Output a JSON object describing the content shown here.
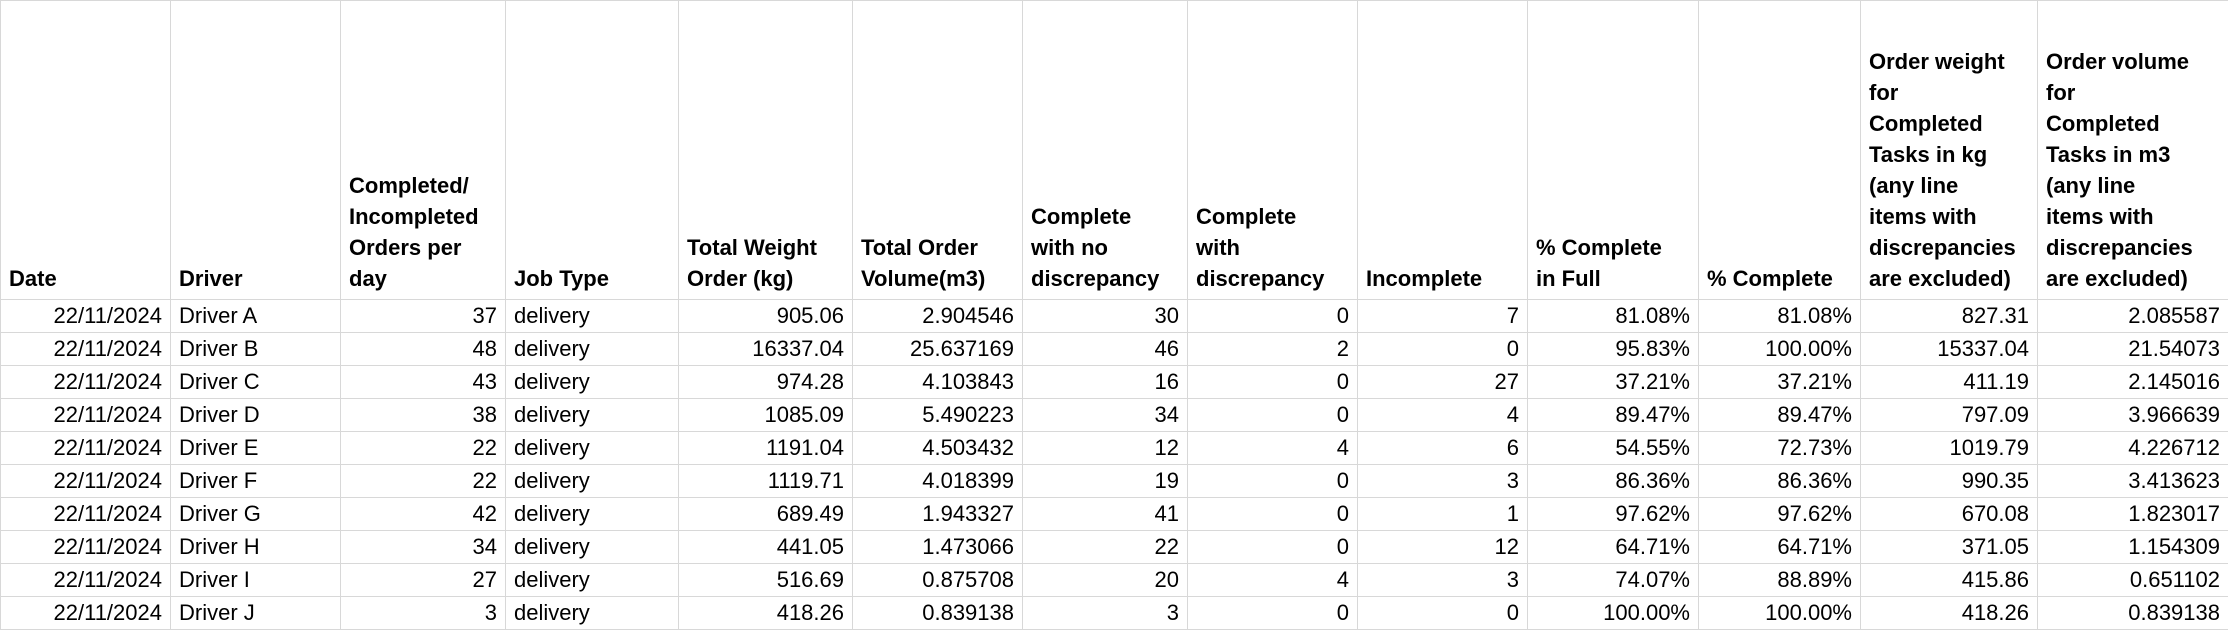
{
  "sheet": {
    "columns": [
      {
        "key": "date",
        "label": "Date",
        "align": "right"
      },
      {
        "key": "driver",
        "label": "Driver",
        "align": "left"
      },
      {
        "key": "completed_incompleted_orders_per_day",
        "label": "Completed/\nIncompleted\nOrders per\nday",
        "align": "right"
      },
      {
        "key": "job_type",
        "label": "Job Type",
        "align": "left"
      },
      {
        "key": "total_weight_order_kg",
        "label": "Total Weight\nOrder (kg)",
        "align": "right"
      },
      {
        "key": "total_order_volume_m3",
        "label": "Total Order\nVolume(m3)",
        "align": "right"
      },
      {
        "key": "complete_no_discrepancy",
        "label": "Complete\nwith no\ndiscrepancy",
        "align": "right"
      },
      {
        "key": "complete_with_discrepancy",
        "label": "Complete\nwith\ndiscrepancy",
        "align": "right"
      },
      {
        "key": "incomplete",
        "label": "Incomplete",
        "align": "right"
      },
      {
        "key": "pct_complete_in_full",
        "label": "% Complete\nin Full",
        "align": "right"
      },
      {
        "key": "pct_complete",
        "label": "% Complete",
        "align": "right"
      },
      {
        "key": "order_weight_completed_kg",
        "label": "Order weight\nfor\nCompleted\nTasks in kg\n(any line\nitems with\ndiscrepancies\nare excluded)",
        "align": "right"
      },
      {
        "key": "order_volume_completed_m3",
        "label": "Order volume\nfor\nCompleted\nTasks in m3\n(any line\nitems with\ndiscrepancies\nare excluded)",
        "align": "right"
      }
    ],
    "rows": [
      {
        "date": "22/11/2024",
        "driver": "Driver A",
        "completed_incompleted_orders_per_day": "37",
        "job_type": "delivery",
        "total_weight_order_kg": "905.06",
        "total_order_volume_m3": "2.904546",
        "complete_no_discrepancy": "30",
        "complete_with_discrepancy": "0",
        "incomplete": "7",
        "pct_complete_in_full": "81.08%",
        "pct_complete": "81.08%",
        "order_weight_completed_kg": "827.31",
        "order_volume_completed_m3": "2.085587"
      },
      {
        "date": "22/11/2024",
        "driver": "Driver B",
        "completed_incompleted_orders_per_day": "48",
        "job_type": "delivery",
        "total_weight_order_kg": "16337.04",
        "total_order_volume_m3": "25.637169",
        "complete_no_discrepancy": "46",
        "complete_with_discrepancy": "2",
        "incomplete": "0",
        "pct_complete_in_full": "95.83%",
        "pct_complete": "100.00%",
        "order_weight_completed_kg": "15337.04",
        "order_volume_completed_m3": "21.54073"
      },
      {
        "date": "22/11/2024",
        "driver": "Driver C",
        "completed_incompleted_orders_per_day": "43",
        "job_type": "delivery",
        "total_weight_order_kg": "974.28",
        "total_order_volume_m3": "4.103843",
        "complete_no_discrepancy": "16",
        "complete_with_discrepancy": "0",
        "incomplete": "27",
        "pct_complete_in_full": "37.21%",
        "pct_complete": "37.21%",
        "order_weight_completed_kg": "411.19",
        "order_volume_completed_m3": "2.145016"
      },
      {
        "date": "22/11/2024",
        "driver": "Driver D",
        "completed_incompleted_orders_per_day": "38",
        "job_type": "delivery",
        "total_weight_order_kg": "1085.09",
        "total_order_volume_m3": "5.490223",
        "complete_no_discrepancy": "34",
        "complete_with_discrepancy": "0",
        "incomplete": "4",
        "pct_complete_in_full": "89.47%",
        "pct_complete": "89.47%",
        "order_weight_completed_kg": "797.09",
        "order_volume_completed_m3": "3.966639"
      },
      {
        "date": "22/11/2024",
        "driver": "Driver E",
        "completed_incompleted_orders_per_day": "22",
        "job_type": "delivery",
        "total_weight_order_kg": "1191.04",
        "total_order_volume_m3": "4.503432",
        "complete_no_discrepancy": "12",
        "complete_with_discrepancy": "4",
        "incomplete": "6",
        "pct_complete_in_full": "54.55%",
        "pct_complete": "72.73%",
        "order_weight_completed_kg": "1019.79",
        "order_volume_completed_m3": "4.226712"
      },
      {
        "date": "22/11/2024",
        "driver": "Driver F",
        "completed_incompleted_orders_per_day": "22",
        "job_type": "delivery",
        "total_weight_order_kg": "1119.71",
        "total_order_volume_m3": "4.018399",
        "complete_no_discrepancy": "19",
        "complete_with_discrepancy": "0",
        "incomplete": "3",
        "pct_complete_in_full": "86.36%",
        "pct_complete": "86.36%",
        "order_weight_completed_kg": "990.35",
        "order_volume_completed_m3": "3.413623"
      },
      {
        "date": "22/11/2024",
        "driver": "Driver G",
        "completed_incompleted_orders_per_day": "42",
        "job_type": "delivery",
        "total_weight_order_kg": "689.49",
        "total_order_volume_m3": "1.943327",
        "complete_no_discrepancy": "41",
        "complete_with_discrepancy": "0",
        "incomplete": "1",
        "pct_complete_in_full": "97.62%",
        "pct_complete": "97.62%",
        "order_weight_completed_kg": "670.08",
        "order_volume_completed_m3": "1.823017"
      },
      {
        "date": "22/11/2024",
        "driver": "Driver H",
        "completed_incompleted_orders_per_day": "34",
        "job_type": "delivery",
        "total_weight_order_kg": "441.05",
        "total_order_volume_m3": "1.473066",
        "complete_no_discrepancy": "22",
        "complete_with_discrepancy": "0",
        "incomplete": "12",
        "pct_complete_in_full": "64.71%",
        "pct_complete": "64.71%",
        "order_weight_completed_kg": "371.05",
        "order_volume_completed_m3": "1.154309"
      },
      {
        "date": "22/11/2024",
        "driver": "Driver I",
        "completed_incompleted_orders_per_day": "27",
        "job_type": "delivery",
        "total_weight_order_kg": "516.69",
        "total_order_volume_m3": "0.875708",
        "complete_no_discrepancy": "20",
        "complete_with_discrepancy": "4",
        "incomplete": "3",
        "pct_complete_in_full": "74.07%",
        "pct_complete": "88.89%",
        "order_weight_completed_kg": "415.86",
        "order_volume_completed_m3": "0.651102"
      },
      {
        "date": "22/11/2024",
        "driver": "Driver J",
        "completed_incompleted_orders_per_day": "3",
        "job_type": "delivery",
        "total_weight_order_kg": "418.26",
        "total_order_volume_m3": "0.839138",
        "complete_no_discrepancy": "3",
        "complete_with_discrepancy": "0",
        "incomplete": "0",
        "pct_complete_in_full": "100.00%",
        "pct_complete": "100.00%",
        "order_weight_completed_kg": "418.26",
        "order_volume_completed_m3": "0.839138"
      }
    ],
    "grid_color": "#d8d8d8"
  }
}
